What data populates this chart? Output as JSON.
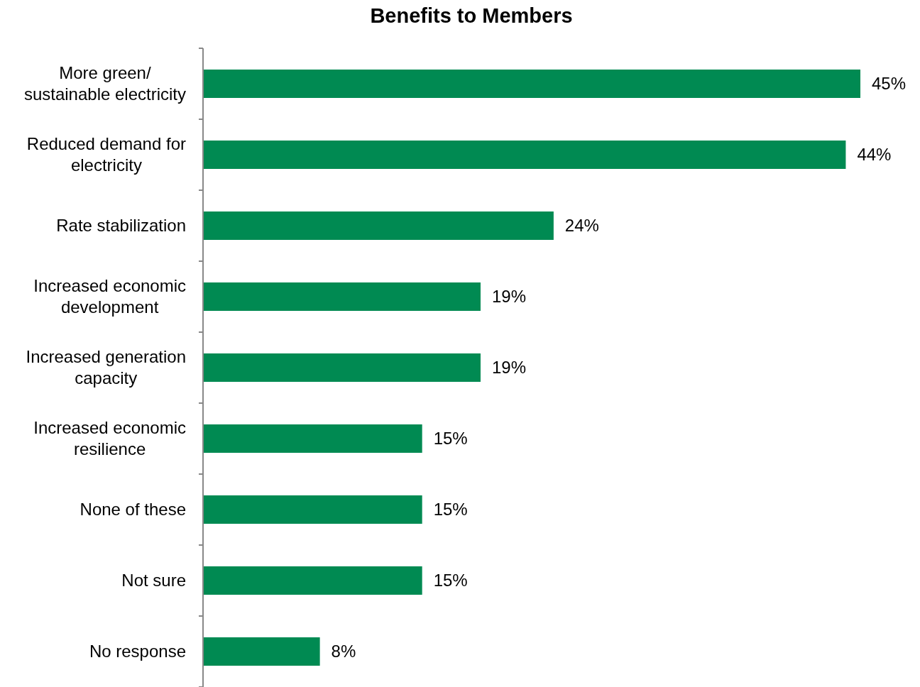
{
  "chart_data": {
    "type": "bar",
    "orientation": "horizontal",
    "title": "Benefits to Members",
    "categories": [
      "More green/ sustainable electricity",
      "Reduced demand for electricity",
      "Rate stabilization",
      "Increased economic development",
      "Increased generation capacity",
      "Increased economic resilience",
      "None of these",
      "Not sure",
      "No response"
    ],
    "values": [
      45,
      44,
      24,
      19,
      19,
      15,
      15,
      15,
      8
    ],
    "value_labels": [
      "45%",
      "44%",
      "24%",
      "19%",
      "19%",
      "15%",
      "15%",
      "15%",
      "8%"
    ],
    "color": "#008a52"
  }
}
